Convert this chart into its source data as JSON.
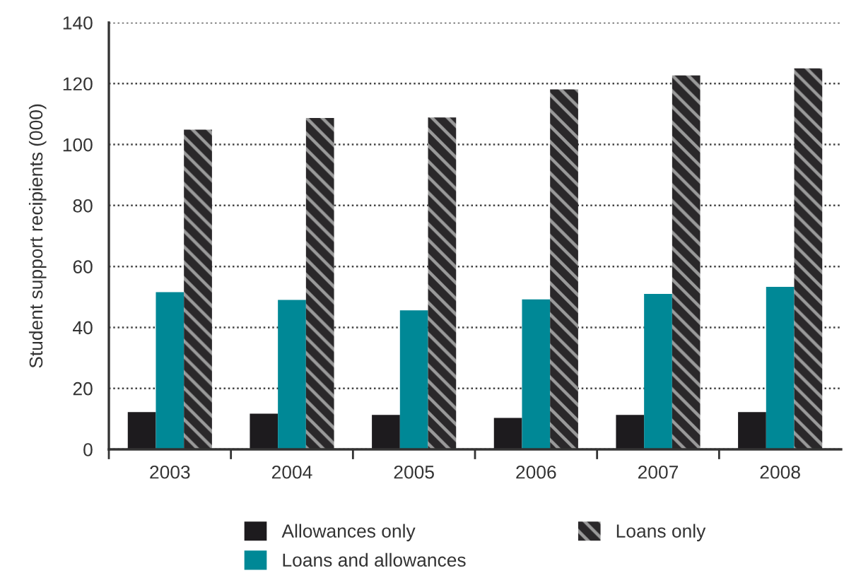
{
  "chart_data": {
    "type": "bar",
    "ylabel": "Student support recipients (000)",
    "categories": [
      "2003",
      "2004",
      "2005",
      "2006",
      "2007",
      "2008"
    ],
    "series": [
      {
        "name": "Allowances only",
        "color": "#1d1b1e",
        "values": [
          12.2,
          11.7,
          11.3,
          10.3,
          11.3,
          12.2
        ]
      },
      {
        "name": "Loans and allowances",
        "color": "#008896",
        "values": [
          51.6,
          49.0,
          45.6,
          49.2,
          51.0,
          53.3
        ]
      },
      {
        "name": "Loans only",
        "color": "#2a282a",
        "values": [
          104.9,
          108.7,
          108.9,
          118.1,
          122.7,
          125.0
        ]
      }
    ],
    "ylim": [
      0,
      140
    ],
    "yticks": [
      0,
      20,
      40,
      60,
      80,
      100,
      120,
      140
    ],
    "grid": "y",
    "legend": "bottom"
  }
}
